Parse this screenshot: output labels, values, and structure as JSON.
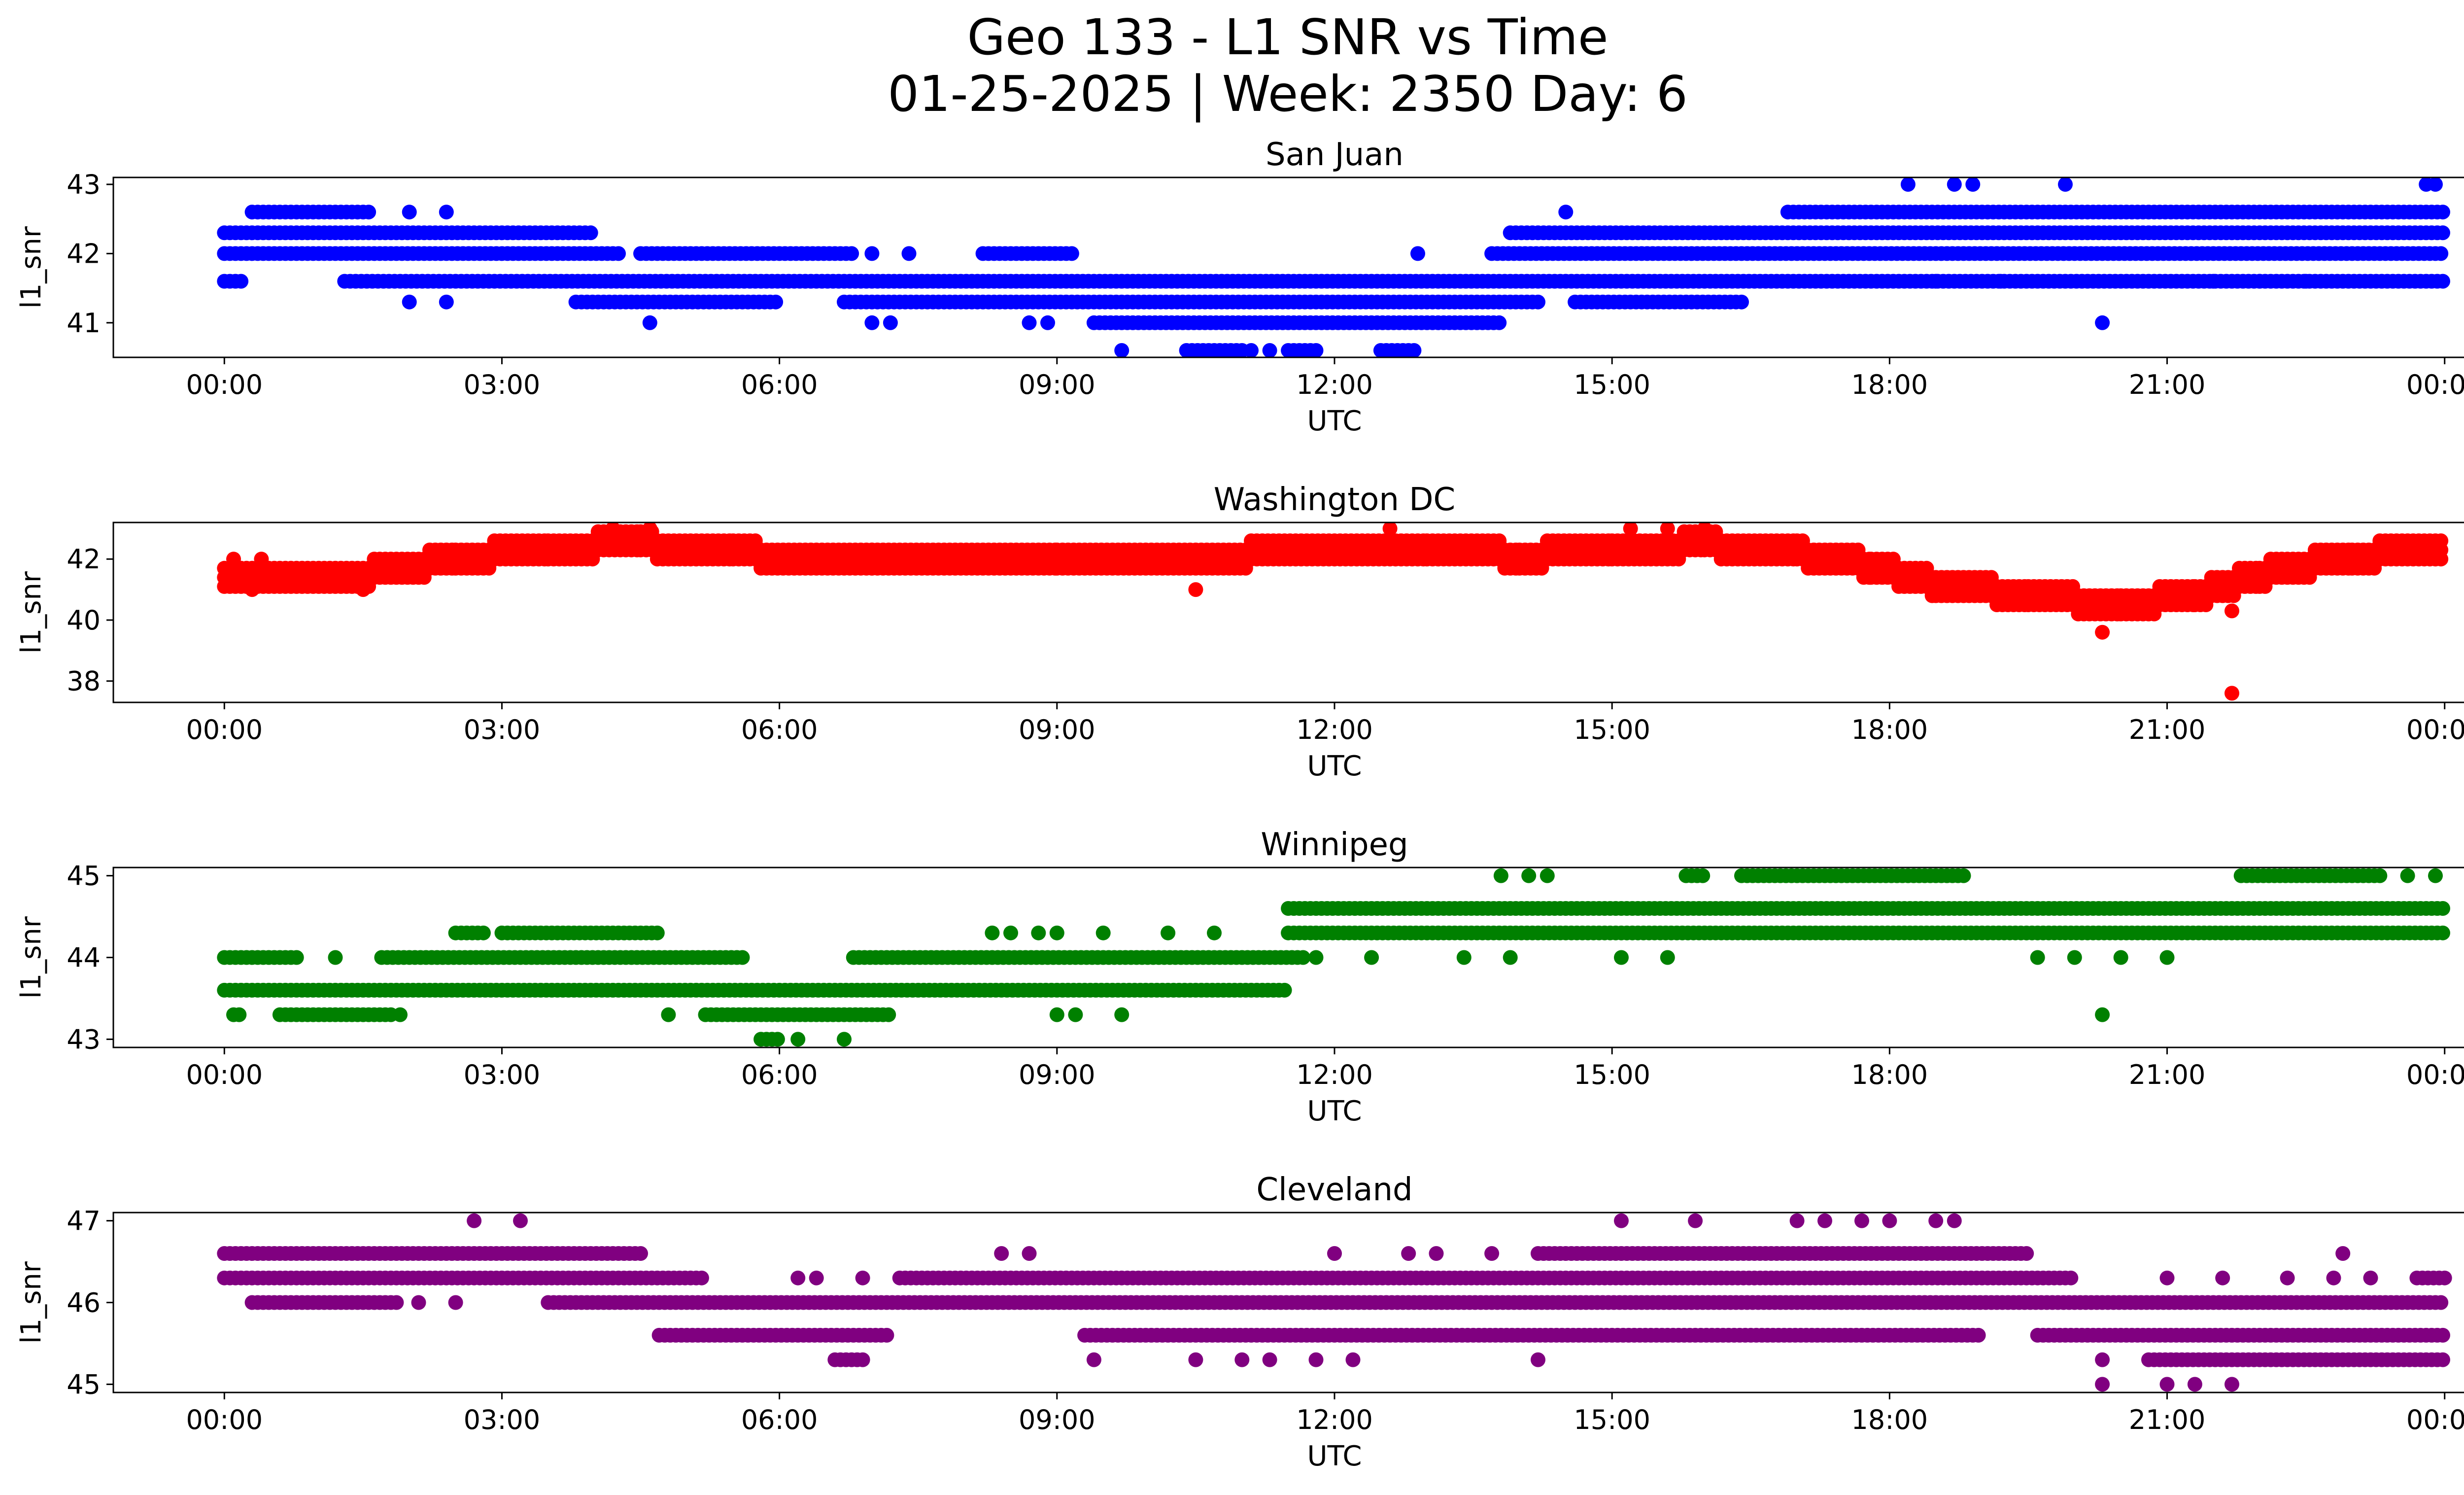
{
  "figure": {
    "title_line1": "Geo 133 - L1 SNR vs Time",
    "title_line2": "01-25-2025 | Week: 2350 Day: 6"
  },
  "chart_data": [
    {
      "type": "scatter",
      "title": "San Juan",
      "xlabel": "UTC",
      "ylabel": "l1_snr",
      "color": "#0000ff",
      "x_ticks": [
        "00:00",
        "03:00",
        "06:00",
        "09:00",
        "12:00",
        "15:00",
        "18:00",
        "21:00",
        "00:00"
      ],
      "x_tick_hours": [
        0,
        3,
        6,
        9,
        12,
        15,
        18,
        21,
        24
      ],
      "xlim_hours": [
        -1.2,
        25.2
      ],
      "y_ticks": [
        41,
        42,
        43
      ],
      "ylim": [
        40.5,
        43.1
      ],
      "bands": [
        {
          "y": 42.0,
          "segments": [
            [
              0,
              4.3
            ],
            [
              4.5,
              6.8
            ],
            [
              8.2,
              9.2
            ],
            [
              13.7,
              24
            ]
          ]
        },
        {
          "y": 42.3,
          "segments": [
            [
              0,
              4.0
            ],
            [
              13.9,
              24
            ]
          ]
        },
        {
          "y": 41.6,
          "segments": [
            [
              0,
              0.2
            ],
            [
              1.3,
              24
            ]
          ]
        },
        {
          "y": 42.6,
          "segments": [
            [
              0.3,
              1.6
            ],
            [
              16.9,
              24
            ]
          ]
        },
        {
          "y": 41.3,
          "segments": [
            [
              3.8,
              6.0
            ],
            [
              6.7,
              14.2
            ],
            [
              14.6,
              16.4
            ]
          ]
        },
        {
          "y": 41.0,
          "segments": [
            [
              9.4,
              13.8
            ]
          ]
        },
        {
          "y": 40.6,
          "segments": [
            [
              10.4,
              11.0
            ],
            [
              11.5,
              11.8
            ],
            [
              12.5,
              12.9
            ]
          ]
        }
      ],
      "extra_points": [
        [
          9.7,
          40.6
        ],
        [
          11.3,
          40.6
        ],
        [
          11.1,
          40.6
        ],
        [
          4.6,
          41.0
        ],
        [
          7.0,
          41.0
        ],
        [
          7.2,
          41.0
        ],
        [
          8.7,
          41.0
        ],
        [
          8.9,
          41.0
        ],
        [
          20.3,
          41.0
        ],
        [
          2.0,
          41.3
        ],
        [
          2.4,
          41.3
        ],
        [
          14.5,
          42.6
        ],
        [
          2.0,
          42.6
        ],
        [
          2.4,
          42.6
        ],
        [
          18.2,
          43.0
        ],
        [
          18.7,
          43.0
        ],
        [
          18.9,
          43.0
        ],
        [
          19.9,
          43.0
        ],
        [
          23.8,
          43.0
        ],
        [
          23.9,
          43.0
        ],
        [
          12.9,
          42.0
        ],
        [
          7.0,
          42.0
        ],
        [
          7.4,
          42.0
        ],
        [
          18.5,
          41.6
        ],
        [
          19.2,
          41.6
        ],
        [
          21.5,
          41.6
        ],
        [
          22.0,
          41.6
        ],
        [
          22.5,
          41.6
        ]
      ],
      "xy_precision": "hours since 00:00 UTC, SNR in dB-Hz"
    },
    {
      "type": "scatter",
      "title": "Washington DC",
      "xlabel": "UTC",
      "ylabel": "l1_snr",
      "color": "#ff0000",
      "x_ticks": [
        "00:00",
        "03:00",
        "06:00",
        "09:00",
        "12:00",
        "15:00",
        "18:00",
        "21:00",
        "00:00"
      ],
      "x_tick_hours": [
        0,
        3,
        6,
        9,
        12,
        15,
        18,
        21,
        24
      ],
      "xlim_hours": [
        -1.2,
        25.2
      ],
      "y_ticks": [
        38,
        40,
        42
      ],
      "ylim": [
        37.3,
        43.2
      ],
      "curve": [
        [
          0,
          41.5
        ],
        [
          1.5,
          41.5
        ],
        [
          2.5,
          42.0
        ],
        [
          3.5,
          42.4
        ],
        [
          4.5,
          42.5
        ],
        [
          5.5,
          42.2
        ],
        [
          7.0,
          41.9
        ],
        [
          9.0,
          41.9
        ],
        [
          10.5,
          42.0
        ],
        [
          12.0,
          42.4
        ],
        [
          13.0,
          42.4
        ],
        [
          14.0,
          42.1
        ],
        [
          15.0,
          42.3
        ],
        [
          16.0,
          42.5
        ],
        [
          17.0,
          42.2
        ],
        [
          17.8,
          41.8
        ],
        [
          18.5,
          41.2
        ],
        [
          19.5,
          40.8
        ],
        [
          20.5,
          40.5
        ],
        [
          21.3,
          40.8
        ],
        [
          22.0,
          41.5
        ],
        [
          23.0,
          42.1
        ],
        [
          24.0,
          42.3
        ]
      ],
      "extra_points": [
        [
          21.7,
          37.6
        ],
        [
          20.3,
          39.6
        ],
        [
          21.7,
          40.3
        ],
        [
          10.5,
          41.0
        ],
        [
          0.3,
          41.0
        ],
        [
          1.5,
          41.0
        ],
        [
          4.2,
          43.0
        ],
        [
          4.6,
          43.0
        ],
        [
          12.6,
          43.0
        ],
        [
          15.2,
          43.0
        ],
        [
          15.6,
          43.0
        ],
        [
          16.0,
          43.0
        ],
        [
          0.1,
          42.0
        ],
        [
          0.4,
          42.0
        ]
      ]
    },
    {
      "type": "scatter",
      "title": "Winnipeg",
      "xlabel": "UTC",
      "ylabel": "l1_snr",
      "color": "#008000",
      "x_ticks": [
        "00:00",
        "03:00",
        "06:00",
        "09:00",
        "12:00",
        "15:00",
        "18:00",
        "21:00",
        "00:00"
      ],
      "x_tick_hours": [
        0,
        3,
        6,
        9,
        12,
        15,
        18,
        21,
        24
      ],
      "xlim_hours": [
        -1.2,
        25.2
      ],
      "y_ticks": [
        43,
        44,
        45
      ],
      "ylim": [
        42.9,
        45.1
      ],
      "bands": [
        {
          "y": 44.0,
          "segments": [
            [
              0,
              0.8
            ],
            [
              1.7,
              5.6
            ],
            [
              6.8,
              11.7
            ]
          ]
        },
        {
          "y": 43.6,
          "segments": [
            [
              0,
              11.5
            ]
          ]
        },
        {
          "y": 43.3,
          "segments": [
            [
              0.1,
              0.2
            ],
            [
              0.6,
              1.8
            ],
            [
              5.2,
              7.2
            ]
          ]
        },
        {
          "y": 44.3,
          "segments": [
            [
              2.5,
              2.8
            ],
            [
              3.0,
              4.7
            ],
            [
              11.5,
              24
            ]
          ]
        },
        {
          "y": 44.6,
          "segments": [
            [
              11.5,
              24
            ]
          ]
        },
        {
          "y": 45.0,
          "segments": [
            [
              15.8,
              16.0
            ],
            [
              16.4,
              18.8
            ],
            [
              21.8,
              23.3
            ]
          ]
        },
        {
          "y": 43.0,
          "segments": [
            [
              5.8,
              6.0
            ]
          ]
        }
      ],
      "extra_points": [
        [
          1.2,
          44.0
        ],
        [
          6.2,
          43.0
        ],
        [
          6.7,
          43.0
        ],
        [
          1.9,
          43.3
        ],
        [
          4.8,
          43.3
        ],
        [
          9.0,
          43.3
        ],
        [
          9.2,
          43.3
        ],
        [
          9.7,
          43.3
        ],
        [
          8.3,
          44.3
        ],
        [
          8.5,
          44.3
        ],
        [
          8.8,
          44.3
        ],
        [
          9.0,
          44.3
        ],
        [
          9.5,
          44.3
        ],
        [
          10.2,
          44.3
        ],
        [
          10.7,
          44.3
        ],
        [
          11.8,
          44.0
        ],
        [
          12.4,
          44.0
        ],
        [
          13.4,
          44.0
        ],
        [
          13.9,
          44.0
        ],
        [
          15.1,
          44.0
        ],
        [
          15.6,
          44.0
        ],
        [
          19.6,
          44.0
        ],
        [
          20.0,
          44.0
        ],
        [
          20.5,
          44.0
        ],
        [
          21.0,
          44.0
        ],
        [
          20.3,
          43.3
        ],
        [
          13.8,
          45.0
        ],
        [
          14.1,
          45.0
        ],
        [
          14.3,
          45.0
        ],
        [
          23.9,
          45.0
        ],
        [
          23.6,
          45.0
        ]
      ]
    },
    {
      "type": "scatter",
      "title": "Cleveland",
      "xlabel": "UTC",
      "ylabel": "l1_snr",
      "color": "#800080",
      "x_ticks": [
        "00:00",
        "03:00",
        "06:00",
        "09:00",
        "12:00",
        "15:00",
        "18:00",
        "21:00",
        "00:00"
      ],
      "x_tick_hours": [
        0,
        3,
        6,
        9,
        12,
        15,
        18,
        21,
        24
      ],
      "xlim_hours": [
        -1.2,
        25.2
      ],
      "y_ticks": [
        45,
        46,
        47
      ],
      "ylim": [
        44.9,
        47.1
      ],
      "bands": [
        {
          "y": 46.6,
          "segments": [
            [
              0,
              4.5
            ],
            [
              14.2,
              19.5
            ]
          ]
        },
        {
          "y": 46.3,
          "segments": [
            [
              0,
              5.2
            ],
            [
              7.3,
              20.0
            ],
            [
              23.7,
              24
            ]
          ]
        },
        {
          "y": 46.0,
          "segments": [
            [
              0.3,
              1.9
            ],
            [
              3.5,
              24
            ]
          ]
        },
        {
          "y": 45.6,
          "segments": [
            [
              4.7,
              7.2
            ],
            [
              9.3,
              19.0
            ],
            [
              19.6,
              24
            ]
          ]
        },
        {
          "y": 45.3,
          "segments": [
            [
              20.8,
              24
            ]
          ]
        },
        {
          "y": 45.3,
          "segments": [
            [
              6.6,
              6.9
            ]
          ]
        }
      ],
      "extra_points": [
        [
          2.7,
          47.0
        ],
        [
          3.2,
          47.0
        ],
        [
          15.1,
          47.0
        ],
        [
          15.9,
          47.0
        ],
        [
          17.0,
          47.0
        ],
        [
          17.3,
          47.0
        ],
        [
          17.7,
          47.0
        ],
        [
          18.0,
          47.0
        ],
        [
          18.5,
          47.0
        ],
        [
          18.7,
          47.0
        ],
        [
          2.5,
          46.0
        ],
        [
          2.1,
          46.0
        ],
        [
          6.2,
          46.3
        ],
        [
          6.4,
          46.3
        ],
        [
          6.9,
          46.3
        ],
        [
          8.4,
          46.6
        ],
        [
          8.7,
          46.6
        ],
        [
          12.0,
          46.6
        ],
        [
          12.8,
          46.6
        ],
        [
          13.1,
          46.6
        ],
        [
          13.7,
          46.6
        ],
        [
          22.9,
          46.6
        ],
        [
          9.4,
          45.3
        ],
        [
          10.5,
          45.3
        ],
        [
          11.0,
          45.3
        ],
        [
          11.3,
          45.3
        ],
        [
          11.8,
          45.3
        ],
        [
          12.2,
          45.3
        ],
        [
          14.2,
          45.3
        ],
        [
          20.3,
          45.0
        ],
        [
          21.0,
          45.0
        ],
        [
          21.3,
          45.0
        ],
        [
          21.7,
          45.0
        ],
        [
          20.3,
          45.3
        ],
        [
          21.0,
          46.3
        ],
        [
          21.6,
          46.3
        ],
        [
          22.3,
          46.3
        ],
        [
          22.8,
          46.3
        ],
        [
          23.2,
          46.3
        ]
      ]
    }
  ]
}
